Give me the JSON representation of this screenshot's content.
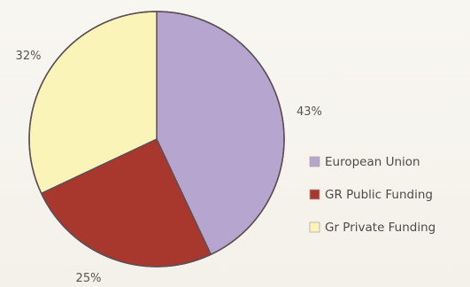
{
  "chart_data": {
    "type": "pie",
    "slices": [
      {
        "label": "European Union",
        "value": 43,
        "value_label": "43%",
        "color": "#b6a5cf"
      },
      {
        "label": "GR Public Funding",
        "value": 25,
        "value_label": "25%",
        "color": "#a8382d"
      },
      {
        "label": "Gr Private Funding",
        "value": 32,
        "value_label": "32%",
        "color": "#faf4b8"
      }
    ],
    "start_angle": "top",
    "direction": "clockwise",
    "outline_color": "#5d4f55",
    "legend_position": "right"
  }
}
